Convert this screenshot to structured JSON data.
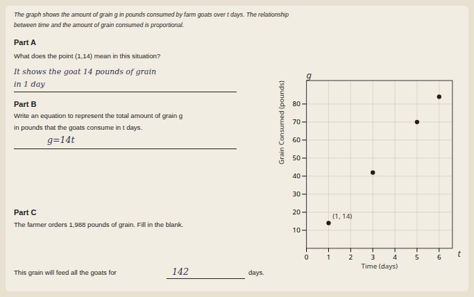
{
  "chart_data": {
    "type": "scatter",
    "x": [
      1,
      3,
      5,
      6
    ],
    "values": [
      14,
      42,
      70,
      84
    ],
    "color": "#2a1a1a",
    "xlabel": "Time (days)",
    "ylabel": "Grain Consumed (pounds)",
    "xlim": [
      0,
      6.6
    ],
    "ylim": [
      0,
      93
    ],
    "xticks": [
      0,
      1,
      2,
      3,
      4,
      5,
      6
    ],
    "yticks": [
      10,
      20,
      30,
      40,
      50,
      60,
      70,
      80
    ],
    "grid": true,
    "annotations": [
      {
        "text": "The graph shows the amount of grain g in pounds consumed by farm goats over t days.  The relationship"
      },
      {
        "text": "between time and the amount of grain consumed is proportional."
      },
      {
        "text": "Part A"
      },
      {
        "text": "What does the point (1,14) mean in this situation?"
      },
      {
        "text": "It  shows  the  goat  14  pounds of grain"
      },
      {
        "text": "in  1 day"
      },
      {
        "text": "Part B"
      },
      {
        "text": "Write an equation to represent the total amount of grain g"
      },
      {
        "text": "in pounds that the goats consume in t days."
      },
      {
        "text": "g=14t"
      },
      {
        "text": "Part C"
      },
      {
        "text": "The farmer orders 1,988 pounds of grain.  Fill in the blank."
      },
      {
        "text": "This grain will feed all the goats for "
      },
      {
        "text": "142"
      },
      {
        "text": "days."
      },
      {
        "text": "t"
      },
      {
        "text": "g"
      },
      {
        "text": "(1, 14)",
        "x": 1,
        "y": 14
      }
    ]
  }
}
